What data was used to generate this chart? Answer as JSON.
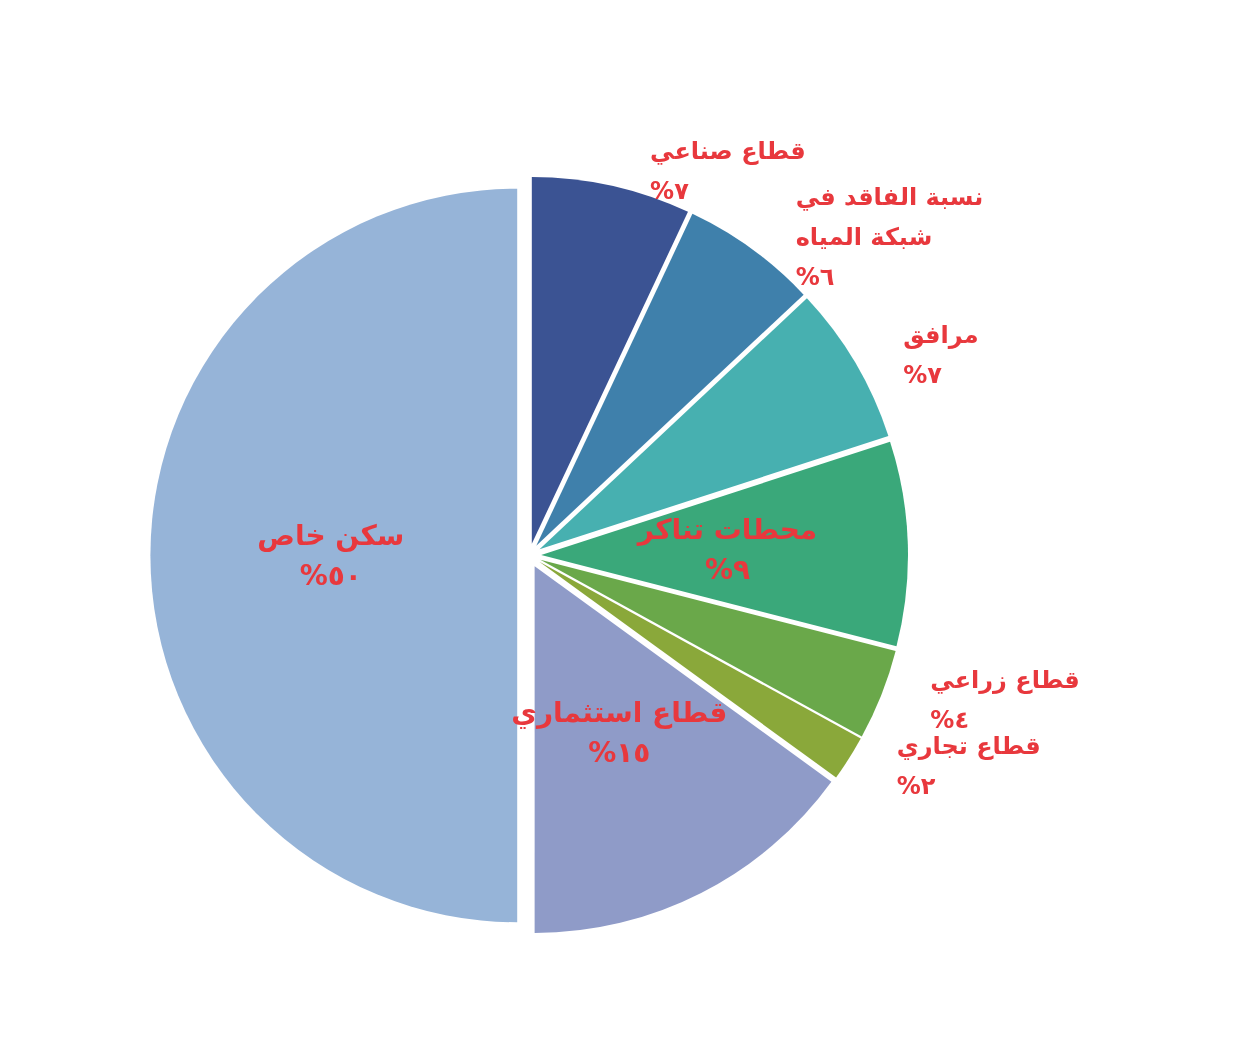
{
  "chart_data": {
    "type": "pie",
    "categories": [
      "قطاع صناعي",
      "نسبة الفاقد في شبكة المياه",
      "مرافق",
      "محطات تناكر",
      "قطاع زراعي",
      "قطاع تجاري",
      "قطاع استثماري",
      "سكن خاص"
    ],
    "values": [
      7,
      6,
      7,
      9,
      4,
      2,
      15,
      50
    ],
    "value_labels": [
      "%٧",
      "%٦",
      "%٧",
      "%٩",
      "%٤",
      "%٢",
      "%١٥",
      "%٥٠"
    ],
    "colors": [
      "#3b5393",
      "#3f80ab",
      "#47b0b0",
      "#3aa87a",
      "#6aa84a",
      "#8aa83a",
      "#8f9bc8",
      "#96b4d8"
    ]
  }
}
